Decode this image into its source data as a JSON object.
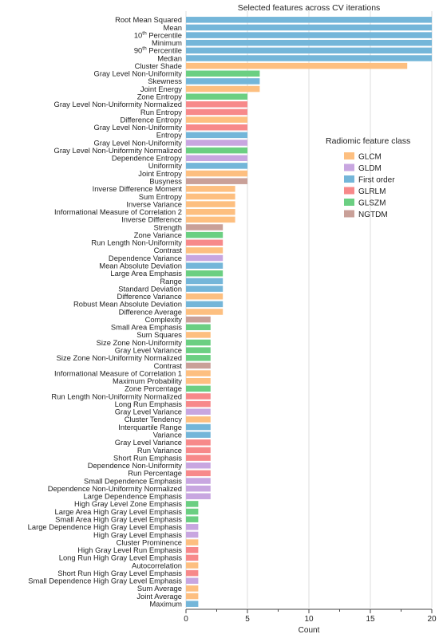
{
  "chart_data": {
    "type": "bar",
    "orientation": "horizontal",
    "title": "Selected features across CV iterations",
    "xlabel": "Count",
    "ylabel": "",
    "xlim": [
      0,
      20
    ],
    "xticks": [
      0,
      5,
      10,
      15,
      20
    ],
    "grid": "vertical lines at major ticks",
    "legend": {
      "title": "Radiomic feature class",
      "placement": "right",
      "entries": [
        {
          "name": "GLCM",
          "color": "#FDBF80"
        },
        {
          "name": "GLDM",
          "color": "#C8A6E0"
        },
        {
          "name": "First order",
          "color": "#74B6D9"
        },
        {
          "name": "GLRLM",
          "color": "#F7898A"
        },
        {
          "name": "GLSZM",
          "color": "#6BCF82"
        },
        {
          "name": "NGTDM",
          "color": "#C9A098"
        }
      ]
    },
    "bars": [
      {
        "label": "Root Mean Squared",
        "value": 20,
        "class": "First order"
      },
      {
        "label": "Mean",
        "value": 20,
        "class": "First order"
      },
      {
        "label": "10th Percentile",
        "value": 20,
        "class": "First order"
      },
      {
        "label": "Minimum",
        "value": 20,
        "class": "First order"
      },
      {
        "label": "90th Percentile",
        "value": 20,
        "class": "First order"
      },
      {
        "label": "Median",
        "value": 20,
        "class": "First order"
      },
      {
        "label": "Cluster Shade",
        "value": 18,
        "class": "GLCM"
      },
      {
        "label": "Gray Level Non-Uniformity",
        "value": 6,
        "class": "GLSZM"
      },
      {
        "label": "Skewness",
        "value": 6,
        "class": "First order"
      },
      {
        "label": "Joint Energy",
        "value": 6,
        "class": "GLCM"
      },
      {
        "label": "Zone Entropy",
        "value": 5,
        "class": "GLSZM"
      },
      {
        "label": "Gray Level Non-Uniformity Normalized",
        "value": 5,
        "class": "GLRLM"
      },
      {
        "label": "Run Entropy",
        "value": 5,
        "class": "GLRLM"
      },
      {
        "label": "Difference Entropy",
        "value": 5,
        "class": "GLCM"
      },
      {
        "label": "Gray Level Non-Uniformity",
        "value": 5,
        "class": "GLRLM"
      },
      {
        "label": "Entropy",
        "value": 5,
        "class": "First order"
      },
      {
        "label": "Gray Level Non-Uniformity",
        "value": 5,
        "class": "GLDM"
      },
      {
        "label": "Gray Level Non-Uniformity Normalized",
        "value": 5,
        "class": "GLSZM"
      },
      {
        "label": "Dependence Entropy",
        "value": 5,
        "class": "GLDM"
      },
      {
        "label": "Uniformity",
        "value": 5,
        "class": "First order"
      },
      {
        "label": "Joint Entropy",
        "value": 5,
        "class": "GLCM"
      },
      {
        "label": "Busyness",
        "value": 5,
        "class": "NGTDM"
      },
      {
        "label": "Inverse Difference Moment",
        "value": 4,
        "class": "GLCM"
      },
      {
        "label": "Sum Entropy",
        "value": 4,
        "class": "GLCM"
      },
      {
        "label": "Inverse Variance",
        "value": 4,
        "class": "GLCM"
      },
      {
        "label": "Informational Measure of Correlation 2",
        "value": 4,
        "class": "GLCM"
      },
      {
        "label": "Inverse Difference",
        "value": 4,
        "class": "GLCM"
      },
      {
        "label": "Strength",
        "value": 3,
        "class": "NGTDM"
      },
      {
        "label": "Zone Variance",
        "value": 3,
        "class": "GLSZM"
      },
      {
        "label": "Run Length Non-Uniformity",
        "value": 3,
        "class": "GLRLM"
      },
      {
        "label": "Contrast",
        "value": 3,
        "class": "GLCM"
      },
      {
        "label": "Dependence Variance",
        "value": 3,
        "class": "GLDM"
      },
      {
        "label": "Mean Absolute Deviation",
        "value": 3,
        "class": "First order"
      },
      {
        "label": "Large Area Emphasis",
        "value": 3,
        "class": "GLSZM"
      },
      {
        "label": "Range",
        "value": 3,
        "class": "First order"
      },
      {
        "label": "Standard Deviation",
        "value": 3,
        "class": "First order"
      },
      {
        "label": "Difference Variance",
        "value": 3,
        "class": "GLCM"
      },
      {
        "label": "Robust Mean Absolute Deviation",
        "value": 3,
        "class": "First order"
      },
      {
        "label": "Difference Average",
        "value": 3,
        "class": "GLCM"
      },
      {
        "label": "Complexity",
        "value": 2,
        "class": "NGTDM"
      },
      {
        "label": "Small Area Emphasis",
        "value": 2,
        "class": "GLSZM"
      },
      {
        "label": "Sum Squares",
        "value": 2,
        "class": "GLCM"
      },
      {
        "label": "Size Zone Non-Uniformity",
        "value": 2,
        "class": "GLSZM"
      },
      {
        "label": "Gray Level Variance",
        "value": 2,
        "class": "GLSZM"
      },
      {
        "label": "Size Zone Non-Uniformity Normalized",
        "value": 2,
        "class": "GLSZM"
      },
      {
        "label": "Contrast",
        "value": 2,
        "class": "NGTDM"
      },
      {
        "label": "Informational Measure of Correlation 1",
        "value": 2,
        "class": "GLCM"
      },
      {
        "label": "Maximum Probability",
        "value": 2,
        "class": "GLCM"
      },
      {
        "label": "Zone Percentage",
        "value": 2,
        "class": "GLSZM"
      },
      {
        "label": "Run Length Non-Uniformity Normalized",
        "value": 2,
        "class": "GLRLM"
      },
      {
        "label": "Long Run Emphasis",
        "value": 2,
        "class": "GLRLM"
      },
      {
        "label": "Gray Level Variance",
        "value": 2,
        "class": "GLDM"
      },
      {
        "label": "Cluster Tendency",
        "value": 2,
        "class": "GLCM"
      },
      {
        "label": "Interquartile Range",
        "value": 2,
        "class": "First order"
      },
      {
        "label": "Variance",
        "value": 2,
        "class": "First order"
      },
      {
        "label": "Gray Level Variance",
        "value": 2,
        "class": "GLRLM"
      },
      {
        "label": "Run Variance",
        "value": 2,
        "class": "GLRLM"
      },
      {
        "label": "Short Run Emphasis",
        "value": 2,
        "class": "GLRLM"
      },
      {
        "label": "Dependence Non-Uniformity",
        "value": 2,
        "class": "GLDM"
      },
      {
        "label": "Run Percentage",
        "value": 2,
        "class": "GLRLM"
      },
      {
        "label": "Small Dependence Emphasis",
        "value": 2,
        "class": "GLDM"
      },
      {
        "label": "Dependence Non-Uniformity Normalized",
        "value": 2,
        "class": "GLDM"
      },
      {
        "label": "Large Dependence Emphasis",
        "value": 2,
        "class": "GLDM"
      },
      {
        "label": "High Gray Level Zone Emphasis",
        "value": 1,
        "class": "GLSZM"
      },
      {
        "label": "Large Area High Gray Level Emphasis",
        "value": 1,
        "class": "GLSZM"
      },
      {
        "label": "Small Area High Gray Level Emphasis",
        "value": 1,
        "class": "GLSZM"
      },
      {
        "label": "Large Dependence High Gray Level Emphasis",
        "value": 1,
        "class": "GLDM"
      },
      {
        "label": "High Gray Level Emphasis",
        "value": 1,
        "class": "GLDM"
      },
      {
        "label": "Cluster Prominence",
        "value": 1,
        "class": "GLCM"
      },
      {
        "label": "High Gray Level Run Emphasis",
        "value": 1,
        "class": "GLRLM"
      },
      {
        "label": "Long Run High Gray Level Emphasis",
        "value": 1,
        "class": "GLRLM"
      },
      {
        "label": "Autocorrelation",
        "value": 1,
        "class": "GLCM"
      },
      {
        "label": "Short Run High Gray Level Emphasis",
        "value": 1,
        "class": "GLRLM"
      },
      {
        "label": "Small Dependence High Gray Level Emphasis",
        "value": 1,
        "class": "GLDM"
      },
      {
        "label": "Sum Average",
        "value": 1,
        "class": "GLCM"
      },
      {
        "label": "Joint Average",
        "value": 1,
        "class": "GLCM"
      },
      {
        "label": "Maximum",
        "value": 1,
        "class": "First order"
      }
    ]
  }
}
